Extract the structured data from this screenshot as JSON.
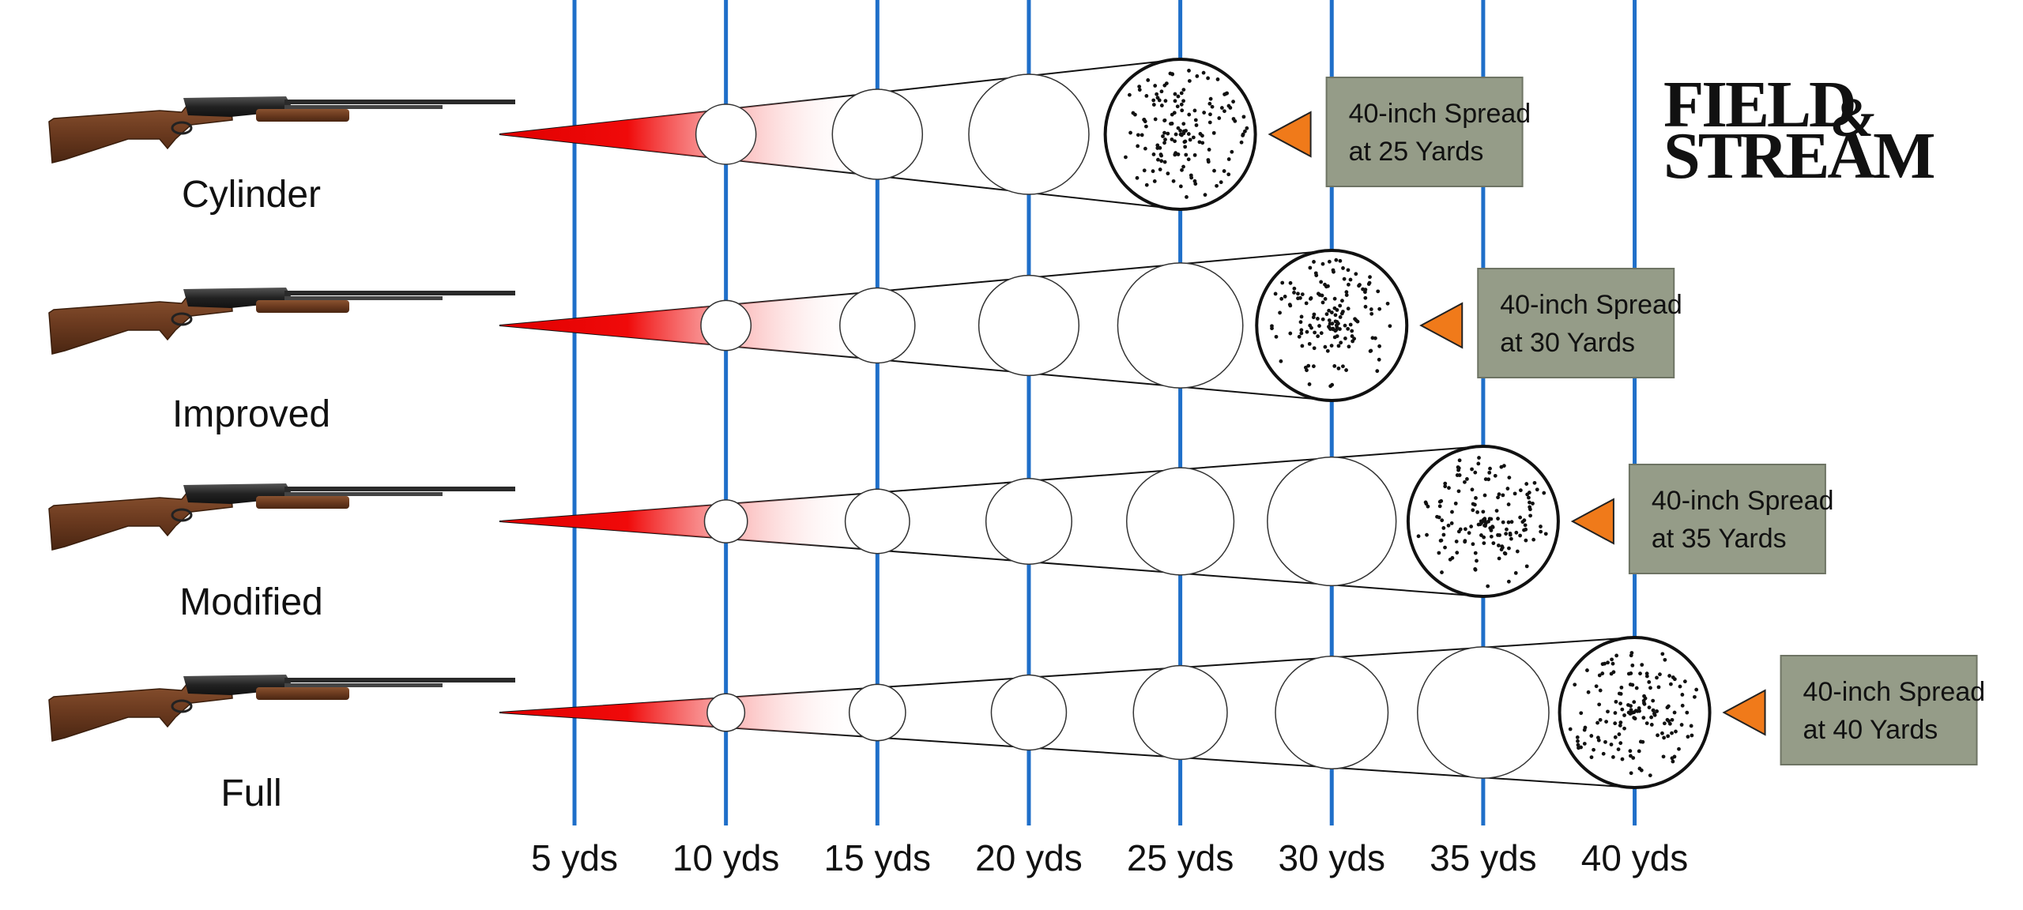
{
  "brand": {
    "line1": "FIELD",
    "ampersand": "&",
    "line2": "STREAM"
  },
  "distances": [
    "5 yds",
    "10 yds",
    "15 yds",
    "20 yds",
    "25 yds",
    "30 yds",
    "35 yds",
    "40 yds"
  ],
  "distance_values_yds": [
    5,
    10,
    15,
    20,
    25,
    30,
    35,
    40
  ],
  "chokes": [
    {
      "name": "Cylinder",
      "spread_line1": "40-inch Spread",
      "spread_line2": "at 25 Yards",
      "spread_yds": 25
    },
    {
      "name": "Improved",
      "spread_line1": "40-inch Spread",
      "spread_line2": "at 30 Yards",
      "spread_yds": 30
    },
    {
      "name": "Modified",
      "spread_line1": "40-inch Spread",
      "spread_line2": "at 35 Yards",
      "spread_yds": 35
    },
    {
      "name": "Full",
      "spread_line1": "40-inch Spread",
      "spread_line2": "at 40 Yards",
      "spread_yds": 40
    }
  ],
  "colors": {
    "gridline": "#1f6fc9",
    "cone_red": "#e00000",
    "callout_bg": "#959c88",
    "arrow": "#f07a1a",
    "stock": "#6b3a1f",
    "barrel": "#2a2a2a"
  }
}
